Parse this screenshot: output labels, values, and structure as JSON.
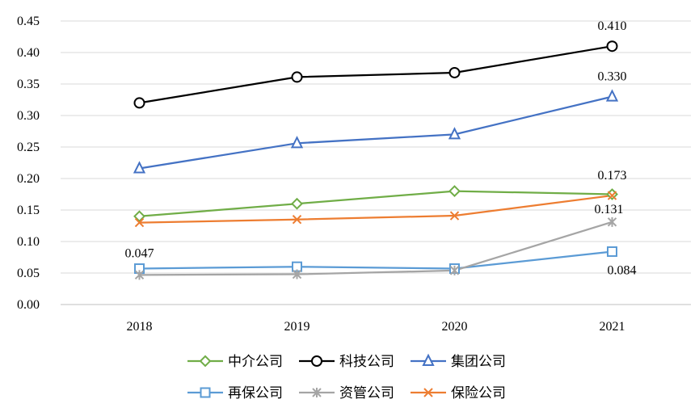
{
  "chart_data": {
    "type": "line",
    "title": "",
    "xlabel": "",
    "ylabel": "",
    "categories": [
      "2018",
      "2019",
      "2020",
      "2021"
    ],
    "ylim": [
      0,
      0.45
    ],
    "yticks": [
      "0.00",
      "0.05",
      "0.10",
      "0.15",
      "0.20",
      "0.25",
      "0.30",
      "0.35",
      "0.40",
      "0.45"
    ],
    "grid": true,
    "legend_position": "bottom",
    "series": [
      {
        "name": "中介公司",
        "color": "#70AD47",
        "marker": "diamond",
        "values": [
          0.14,
          0.16,
          0.18,
          0.175
        ]
      },
      {
        "name": "科技公司",
        "color": "#000000",
        "marker": "circle",
        "values": [
          0.32,
          0.361,
          0.368,
          0.41
        ]
      },
      {
        "name": "集团公司",
        "color": "#4472C4",
        "marker": "triangle",
        "values": [
          0.216,
          0.256,
          0.27,
          0.33
        ]
      },
      {
        "name": "再保公司",
        "color": "#5B9BD5",
        "marker": "square",
        "values": [
          0.057,
          0.06,
          0.057,
          0.084
        ]
      },
      {
        "name": "资管公司",
        "color": "#A5A5A5",
        "marker": "star",
        "values": [
          0.047,
          0.048,
          0.054,
          0.131
        ]
      },
      {
        "name": "保险公司",
        "color": "#ED7D31",
        "marker": "x",
        "values": [
          0.13,
          0.135,
          0.141,
          0.173
        ]
      }
    ],
    "data_labels": [
      {
        "series": "科技公司",
        "index": 3,
        "text": "0.410"
      },
      {
        "series": "集团公司",
        "index": 3,
        "text": "0.330"
      },
      {
        "series": "保险公司",
        "index": 3,
        "text": "0.173"
      },
      {
        "series": "资管公司",
        "index": 3,
        "text": "0.131"
      },
      {
        "series": "资管公司",
        "index": 0,
        "text": "0.047"
      },
      {
        "series": "再保公司",
        "index": 3,
        "text": "0.084"
      }
    ]
  }
}
